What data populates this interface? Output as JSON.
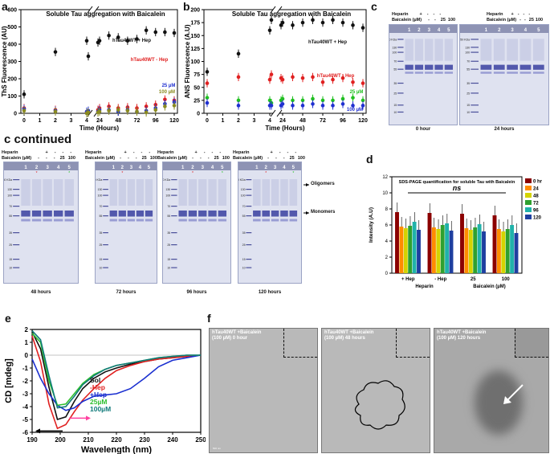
{
  "panel_labels": {
    "a": "a",
    "b": "b",
    "c": "c",
    "c_cont": "c continued",
    "d": "d",
    "e": "e",
    "f": "f"
  },
  "chart_data": [
    {
      "id": "a",
      "type": "scatter",
      "title": "Soluble Tau aggregation with Baicalein",
      "xlabel": "Time (Hours)",
      "ylabel": "ThS Fluorescence (AU)",
      "xticks_left": [
        "0",
        "1",
        "2",
        "3",
        "4"
      ],
      "xticks_right": [
        "24",
        "48",
        "72",
        "96",
        "120"
      ],
      "yticks": [
        "0",
        "100",
        "200",
        "300",
        "400",
        "500",
        "600"
      ],
      "ylim": [
        0,
        600
      ],
      "series": [
        {
          "name": "hTau40WT + Hep",
          "color": "#111111",
          "x": [
            0,
            2,
            4,
            6,
            12,
            24,
            36,
            48,
            60,
            72,
            84,
            96,
            108,
            120
          ],
          "y": [
            110,
            355,
            420,
            330,
            410,
            420,
            450,
            440,
            420,
            430,
            480,
            470,
            470,
            465
          ]
        },
        {
          "name": "hTau40WT - Hep",
          "color": "#e02020",
          "x": [
            0,
            2,
            4,
            6,
            12,
            24,
            36,
            48,
            60,
            72,
            84,
            96,
            108,
            120
          ],
          "y": [
            30,
            20,
            5,
            10,
            20,
            30,
            40,
            30,
            35,
            30,
            40,
            50,
            80,
            75
          ]
        },
        {
          "name": "25 µM",
          "color": "#2030d0",
          "x": [
            0,
            2,
            4,
            6,
            12,
            24,
            36,
            48,
            60,
            72,
            84,
            96,
            108,
            120
          ],
          "y": [
            25,
            15,
            10,
            15,
            10,
            20,
            20,
            10,
            20,
            10,
            15,
            30,
            55,
            65
          ]
        },
        {
          "name": "100 µM",
          "color": "#8a8a20",
          "x": [
            0,
            2,
            4,
            6,
            12,
            24,
            36,
            48,
            60,
            72,
            84,
            96,
            108,
            120
          ],
          "y": [
            15,
            10,
            0,
            5,
            5,
            10,
            15,
            20,
            15,
            10,
            5,
            20,
            40,
            45
          ]
        }
      ],
      "legend_labels": {
        "hep": "hTau40WT + Hep",
        "nohep": "hTau40WT - Hep",
        "c25": "25 µM",
        "c100": "100 µM"
      }
    },
    {
      "id": "b",
      "type": "scatter",
      "title": "Soluble Tau aggregation with Baicalein",
      "xlabel": "Time (Hours)",
      "ylabel": "ANS Fluorescence (A.U)",
      "xticks_left": [
        "0",
        "1",
        "2",
        "3",
        "4"
      ],
      "xticks_right": [
        "24",
        "48",
        "72",
        "96",
        "120"
      ],
      "yticks": [
        "0",
        "25",
        "50",
        "75",
        "100",
        "125",
        "150",
        "175",
        "200"
      ],
      "ylim": [
        0,
        200
      ],
      "series": [
        {
          "name": "hTau40WT + Hep",
          "color": "#111111",
          "x": [
            0,
            2,
            4,
            6,
            12,
            24,
            36,
            48,
            60,
            72,
            84,
            96,
            108,
            120
          ],
          "y": [
            80,
            115,
            160,
            180,
            170,
            175,
            170,
            175,
            180,
            175,
            180,
            175,
            170,
            165
          ]
        },
        {
          "name": "hTau40WT - Hep",
          "color": "#e02020",
          "x": [
            0,
            2,
            4,
            6,
            12,
            24,
            36,
            48,
            60,
            72,
            84,
            96,
            108,
            120
          ],
          "y": [
            58,
            70,
            65,
            75,
            68,
            65,
            70,
            68,
            70,
            60,
            65,
            68,
            60,
            58
          ]
        },
        {
          "name": "25 µM",
          "color": "#20c020",
          "x": [
            0,
            2,
            4,
            6,
            12,
            24,
            36,
            48,
            60,
            72,
            84,
            96,
            108,
            120
          ],
          "y": [
            30,
            25,
            25,
            20,
            25,
            28,
            25,
            25,
            28,
            25,
            25,
            28,
            30,
            25
          ]
        },
        {
          "name": "100 µM",
          "color": "#2030d0",
          "x": [
            0,
            2,
            4,
            6,
            12,
            24,
            36,
            48,
            60,
            72,
            84,
            96,
            108,
            120
          ],
          "y": [
            20,
            15,
            15,
            15,
            15,
            18,
            15,
            15,
            18,
            15,
            15,
            18,
            15,
            15
          ]
        }
      ],
      "legend_labels": {
        "hep": "hTau40WT + Hep",
        "nohep": "hTau40WT - Hep",
        "c25": "25 µM",
        "c100": "100 µM"
      }
    },
    {
      "id": "d",
      "type": "bar",
      "title": "SDS-PAGE quantification for soluble Tau with Baicalein",
      "annotation": "ns",
      "xlabel_left": "Heparin",
      "xlabel_right": "Baicalein (µM)",
      "ylabel": "Intensity (A.U)",
      "categories": [
        "+ Hep",
        "- Hep",
        "25",
        "100"
      ],
      "yticks": [
        "0",
        "2",
        "4",
        "6",
        "8",
        "10",
        "12"
      ],
      "ylim": [
        0,
        12
      ],
      "series": [
        {
          "name": "0 hr",
          "color": "#8b0000",
          "values": [
            7.6,
            7.5,
            7.4,
            7.2
          ]
        },
        {
          "name": "24",
          "color": "#ff8c00",
          "values": [
            5.8,
            5.7,
            5.6,
            5.5
          ]
        },
        {
          "name": "48",
          "color": "#d4d400",
          "values": [
            5.6,
            5.5,
            5.4,
            5.2
          ]
        },
        {
          "name": "72",
          "color": "#2fa02f",
          "values": [
            5.9,
            6.0,
            5.7,
            5.5
          ]
        },
        {
          "name": "96",
          "color": "#20b2aa",
          "values": [
            6.4,
            6.2,
            6.1,
            6.0
          ]
        },
        {
          "name": "120",
          "color": "#1f3fa0",
          "values": [
            5.4,
            5.3,
            5.2,
            5.0
          ]
        }
      ]
    },
    {
      "id": "e",
      "type": "line",
      "xlabel": "Wavelength (nm)",
      "ylabel": "CD [mdeg]",
      "xticks": [
        "190",
        "200",
        "210",
        "220",
        "230",
        "240",
        "250"
      ],
      "yticks": [
        "-6",
        "-5",
        "-4",
        "-3",
        "-2",
        "-1",
        "0",
        "1",
        "2"
      ],
      "xlim": [
        190,
        250
      ],
      "ylim": [
        -6,
        2
      ],
      "series": [
        {
          "name": "Sol",
          "color": "#111111",
          "x": [
            190,
            193,
            196,
            199,
            202,
            205,
            208,
            212,
            216,
            220,
            225,
            230,
            235,
            240,
            245,
            250
          ],
          "y": [
            1.8,
            0.5,
            -2.5,
            -5.0,
            -4.8,
            -3.6,
            -2.6,
            -1.8,
            -1.3,
            -1.0,
            -0.7,
            -0.5,
            -0.3,
            -0.2,
            -0.1,
            0.0
          ]
        },
        {
          "name": "-Hep",
          "color": "#e02020",
          "x": [
            190,
            193,
            196,
            199,
            202,
            205,
            208,
            212,
            216,
            220,
            225,
            230,
            235,
            240,
            245,
            250
          ],
          "y": [
            1.5,
            -0.5,
            -3.8,
            -5.7,
            -5.4,
            -4.4,
            -3.5,
            -2.6,
            -1.8,
            -1.2,
            -0.8,
            -0.5,
            -0.3,
            -0.2,
            -0.1,
            0.0
          ]
        },
        {
          "name": "+Hep",
          "color": "#1a2fd0",
          "x": [
            190,
            193,
            196,
            199,
            202,
            205,
            208,
            212,
            216,
            220,
            225,
            230,
            235,
            240,
            245,
            250
          ],
          "y": [
            -0.3,
            -1.8,
            -3.0,
            -3.9,
            -4.3,
            -4.1,
            -3.6,
            -3.2,
            -3.1,
            -3.0,
            -2.6,
            -1.8,
            -0.9,
            -0.4,
            -0.2,
            0.0
          ]
        },
        {
          "name": "25µM",
          "color": "#30c030",
          "x": [
            190,
            193,
            196,
            199,
            202,
            205,
            208,
            212,
            216,
            220,
            225,
            230,
            235,
            240,
            245,
            250
          ],
          "y": [
            1.7,
            1.0,
            -2.0,
            -3.9,
            -3.8,
            -3.0,
            -2.2,
            -1.5,
            -1.1,
            -0.8,
            -0.6,
            -0.4,
            -0.2,
            -0.1,
            0.0,
            0.0
          ]
        },
        {
          "name": "100µM",
          "color": "#117a7a",
          "x": [
            190,
            193,
            196,
            199,
            202,
            205,
            208,
            212,
            216,
            220,
            225,
            230,
            235,
            240,
            245,
            250
          ],
          "y": [
            1.9,
            1.2,
            -1.6,
            -4.1,
            -4.0,
            -3.2,
            -2.3,
            -1.6,
            -1.1,
            -0.8,
            -0.6,
            -0.4,
            -0.2,
            -0.1,
            0.0,
            0.0
          ]
        }
      ]
    }
  ],
  "gels": {
    "header": {
      "heparin": "Heparin",
      "baicalein": "Baicalein (µM)",
      "plus": "+",
      "minus": "-",
      "c25": "25",
      "c100": "100"
    },
    "lanes": [
      "1",
      "2",
      "3",
      "4",
      "5"
    ],
    "markers": [
      "250 KDa",
      "130",
      "100",
      "70",
      "55",
      "35",
      "25",
      "15",
      "10"
    ],
    "captions": {
      "h0": "0 hour",
      "h24": "24 hours",
      "h48": "48 hours",
      "h72": "72 hours",
      "h96": "96 hours",
      "h120": "120 hours"
    },
    "annot": {
      "oligomers": "Oligomers",
      "monomers": "Monomers"
    }
  },
  "tem": [
    {
      "line1": "hTau40WT +Baicalein",
      "line2": "(100 µM) 0 hour"
    },
    {
      "line1": "hTau40WT +Baicalein",
      "line2": "(100 µM) 48 hours"
    },
    {
      "line1": "hTau40WT +Baicalein",
      "line2": "(100 µM) 120 hours"
    }
  ],
  "tem_scale": "500 nm"
}
